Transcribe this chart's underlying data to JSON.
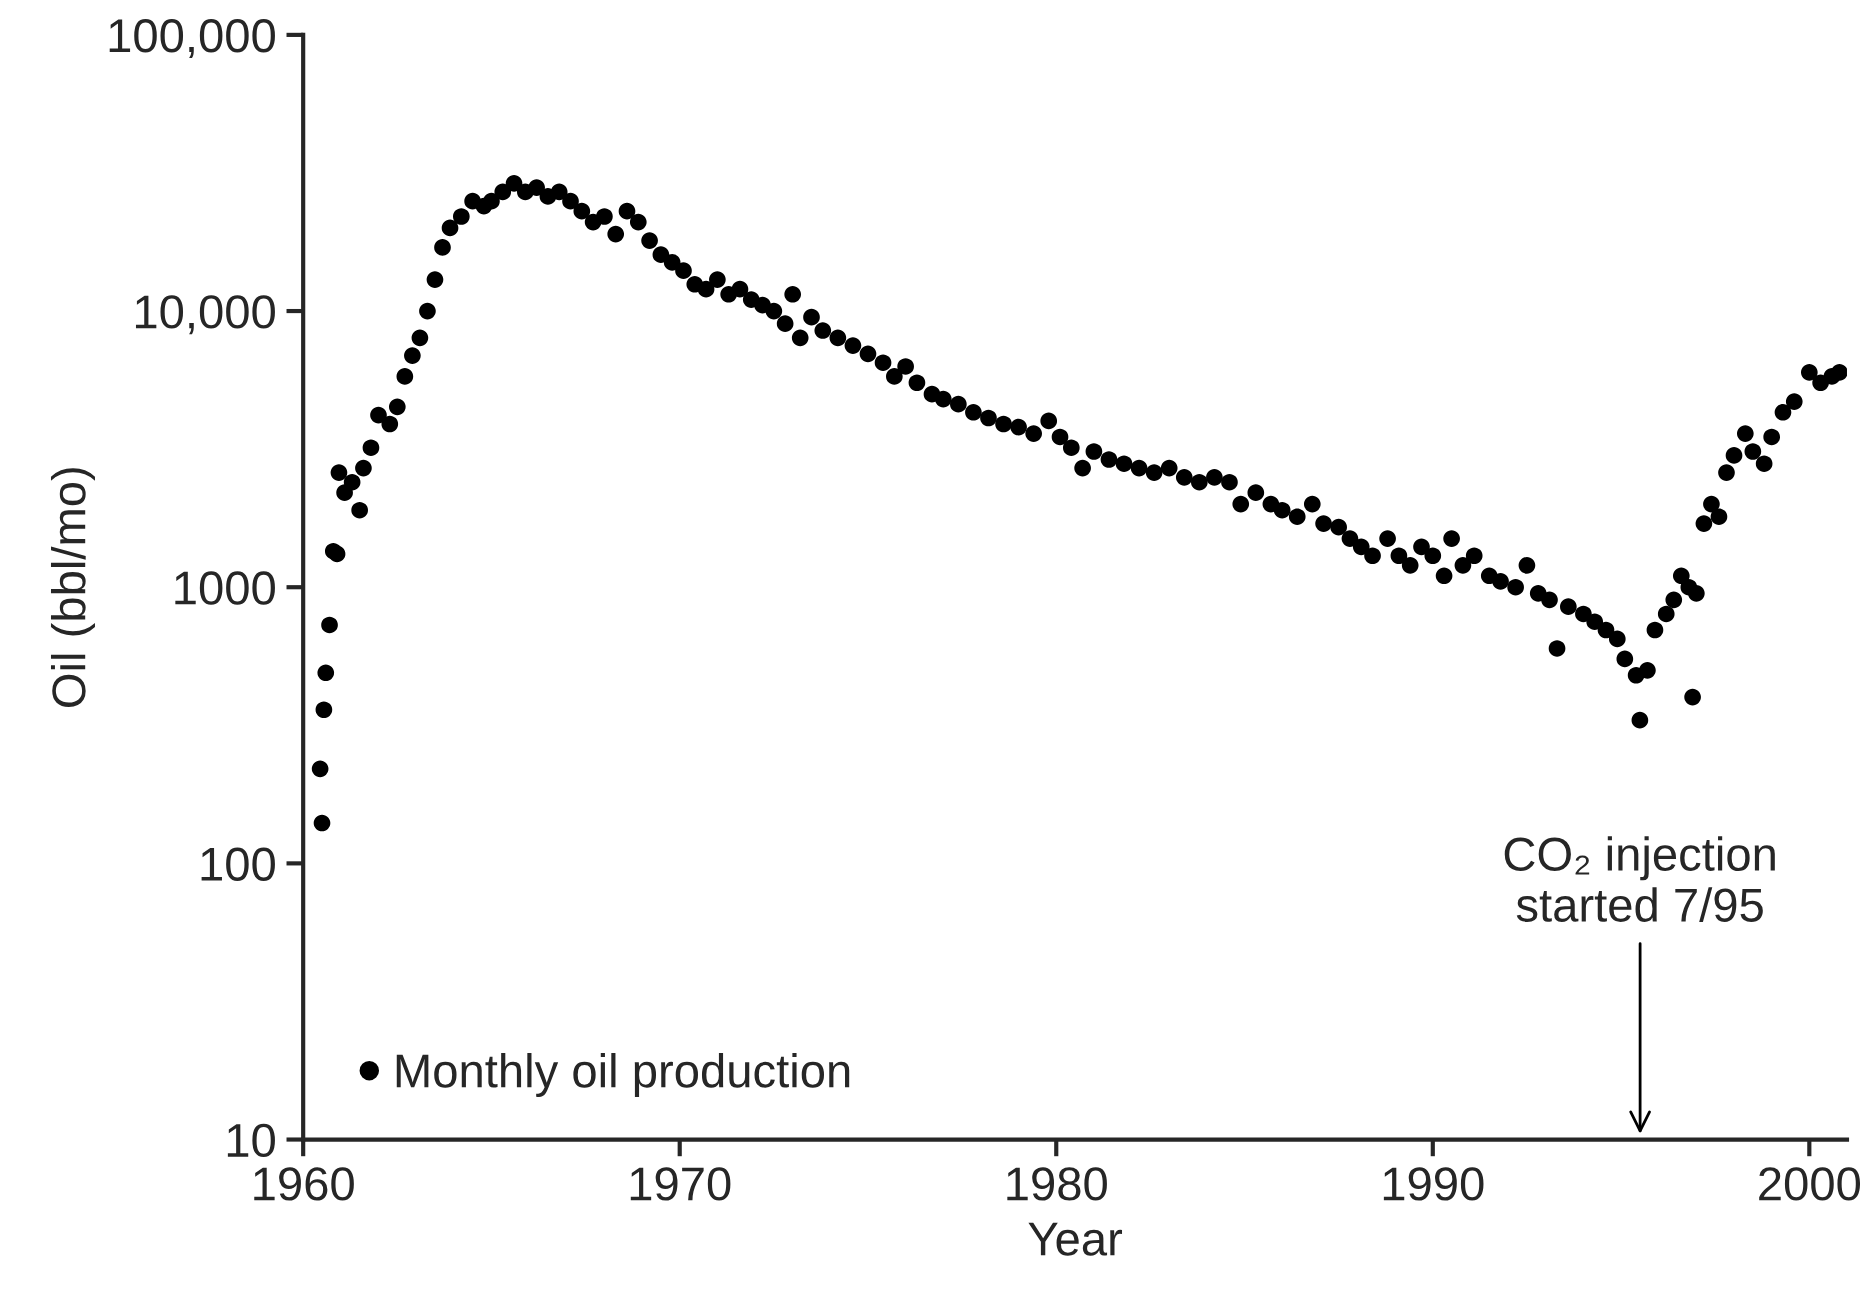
{
  "chart_data": {
    "type": "scatter",
    "xlabel": "Year",
    "ylabel": "Oil (bbl/mo)",
    "log": "y",
    "grid": false,
    "legend": "bottom left",
    "marker": "circle",
    "xlim": [
      1960,
      2001
    ],
    "xticks": [
      1960,
      1970,
      1980,
      1990,
      2000
    ],
    "ylim": [
      10,
      100000
    ],
    "yticks": [
      {
        "value": 100000,
        "label": "100,000"
      },
      {
        "value": 10000,
        "label": "10,000"
      },
      1000,
      100,
      10
    ],
    "annotations": [
      "CO₂ injection\nstarted 7/95"
    ],
    "series": [
      {
        "name": "Monthly oil production",
        "color": "#000000",
        "x": [
          1960.5,
          1960.45,
          1960.55,
          1960.6,
          1960.7,
          1960.8,
          1960.9,
          1960.95,
          1961.1,
          1961.3,
          1961.5,
          1961.6,
          1961.8,
          1962.0,
          1962.3,
          1962.5,
          1962.7,
          1962.9,
          1963.1,
          1963.3,
          1963.5,
          1963.7,
          1963.9,
          1964.2,
          1964.5,
          1964.8,
          1965.0,
          1965.3,
          1965.6,
          1965.9,
          1966.2,
          1966.5,
          1966.8,
          1967.1,
          1967.4,
          1967.7,
          1968.0,
          1968.3,
          1968.6,
          1968.9,
          1969.2,
          1969.5,
          1969.8,
          1970.1,
          1970.4,
          1970.7,
          1971.0,
          1971.3,
          1971.6,
          1971.9,
          1972.2,
          1972.5,
          1972.8,
          1973.0,
          1973.2,
          1973.5,
          1973.8,
          1974.2,
          1974.6,
          1975.0,
          1975.4,
          1975.7,
          1976.0,
          1976.3,
          1976.7,
          1977.0,
          1977.4,
          1977.8,
          1978.2,
          1978.6,
          1979.0,
          1979.4,
          1979.8,
          1980.1,
          1980.4,
          1980.7,
          1981.0,
          1981.4,
          1981.8,
          1982.2,
          1982.6,
          1983.0,
          1983.4,
          1983.8,
          1984.2,
          1984.6,
          1984.9,
          1985.3,
          1985.7,
          1986.0,
          1986.4,
          1986.8,
          1987.1,
          1987.5,
          1987.8,
          1988.1,
          1988.4,
          1988.8,
          1989.1,
          1989.4,
          1989.7,
          1990.0,
          1990.3,
          1990.5,
          1990.8,
          1991.1,
          1991.5,
          1991.8,
          1992.2,
          1992.5,
          1992.8,
          1993.1,
          1993.3,
          1993.6,
          1994.0,
          1994.3,
          1994.6,
          1994.9,
          1995.1,
          1995.4,
          1995.5,
          1995.7,
          1995.9,
          1996.2,
          1996.4,
          1996.6,
          1996.8,
          1996.9,
          1997.0,
          1997.2,
          1997.4,
          1997.6,
          1997.8,
          1998.0,
          1998.3,
          1998.5,
          1998.8,
          1999.0,
          1999.3,
          1999.6,
          2000.0,
          2000.3,
          2000.6,
          2000.8
        ],
        "values": [
          140,
          220,
          360,
          490,
          730,
          1350,
          1320,
          2600,
          2200,
          2400,
          1900,
          2700,
          3200,
          4200,
          3900,
          4500,
          5800,
          6900,
          8000,
          10000,
          13000,
          17000,
          20000,
          22000,
          25000,
          24000,
          25000,
          27000,
          29000,
          27000,
          28000,
          26000,
          27000,
          25000,
          23000,
          21000,
          22000,
          19000,
          23000,
          21000,
          18000,
          16000,
          15000,
          14000,
          12500,
          12000,
          13000,
          11500,
          12000,
          11000,
          10500,
          10000,
          9000,
          11500,
          8000,
          9500,
          8500,
          8000,
          7500,
          7000,
          6500,
          5800,
          6300,
          5500,
          5000,
          4800,
          4600,
          4300,
          4100,
          3900,
          3800,
          3600,
          4000,
          3500,
          3200,
          2700,
          3100,
          2900,
          2800,
          2700,
          2600,
          2700,
          2500,
          2400,
          2500,
          2400,
          2000,
          2200,
          2000,
          1900,
          1800,
          2000,
          1700,
          1650,
          1500,
          1400,
          1300,
          1500,
          1300,
          1200,
          1400,
          1300,
          1100,
          1500,
          1200,
          1300,
          1100,
          1050,
          1000,
          1200,
          950,
          900,
          600,
          850,
          800,
          750,
          700,
          650,
          550,
          480,
          330,
          500,
          700,
          800,
          900,
          1100,
          1000,
          400,
          950,
          1700,
          2000,
          1800,
          2600,
          3000,
          3600,
          3100,
          2800,
          3500,
          4300,
          4700,
          6000,
          5500,
          5800,
          6000
        ]
      }
    ]
  }
}
